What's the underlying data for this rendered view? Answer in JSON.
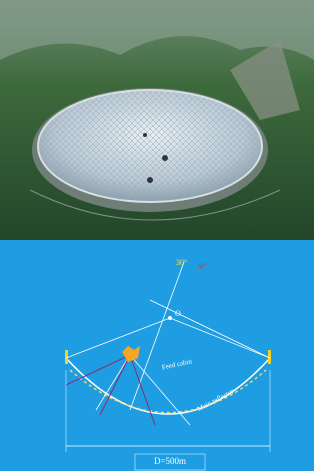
{
  "diagram": {
    "labels": {
      "angle_a": "30°",
      "angle_b": "40°",
      "center": "O",
      "feed": "Feed cabin",
      "reflector": "Main reflector",
      "diameter": "D=500m"
    }
  }
}
